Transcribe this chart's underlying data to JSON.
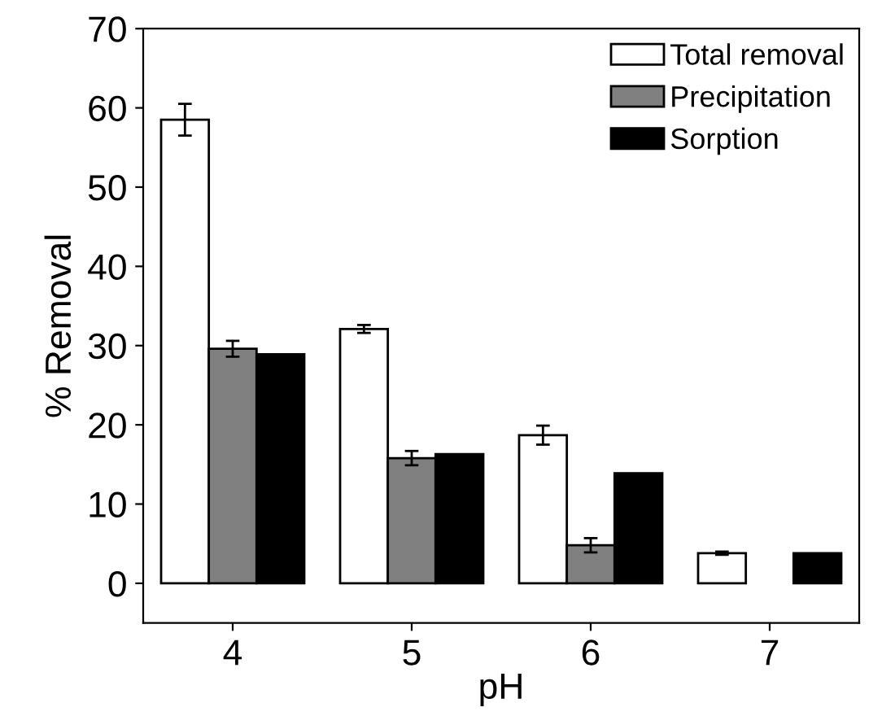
{
  "chart_data": {
    "type": "bar",
    "xlabel": "pH",
    "ylabel": "% Removal",
    "categories": [
      "4",
      "5",
      "6",
      "7"
    ],
    "series": [
      {
        "name": "Total removal",
        "color": "#ffffff",
        "values": [
          58.5,
          32.1,
          18.7,
          3.8
        ],
        "errors": [
          2.0,
          0.5,
          1.2,
          0.2
        ]
      },
      {
        "name": "Precipitation",
        "color": "#808080",
        "values": [
          29.6,
          15.8,
          4.8,
          null
        ],
        "errors": [
          1.0,
          0.9,
          0.9,
          null
        ]
      },
      {
        "name": "Sorption",
        "color": "#000000",
        "values": [
          28.9,
          16.3,
          13.9,
          3.8
        ]
      }
    ],
    "ylim": [
      -5,
      70
    ],
    "yticks": [
      0,
      10,
      20,
      30,
      40,
      50,
      60,
      70
    ],
    "legend": "top right",
    "grid": false
  }
}
